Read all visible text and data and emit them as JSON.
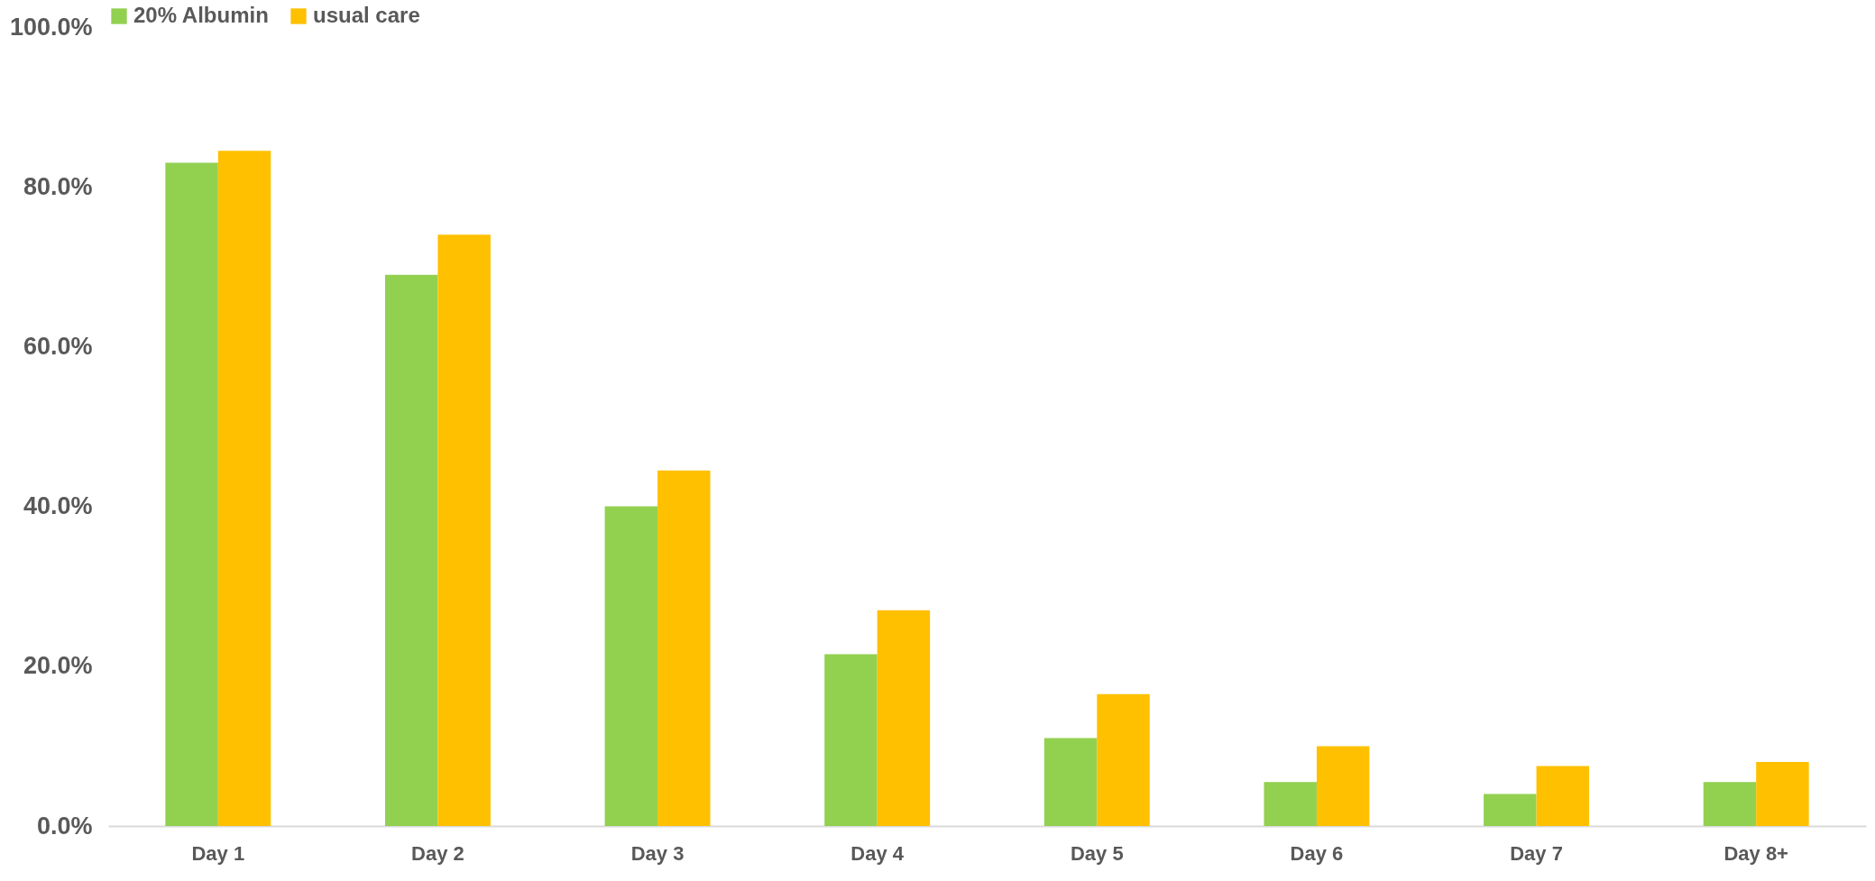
{
  "chart_data": {
    "type": "bar",
    "categories": [
      "Day 1",
      "Day 2",
      "Day 3",
      "Day 4",
      "Day 5",
      "Day 6",
      "Day 7",
      "Day 8+"
    ],
    "series": [
      {
        "name": "20% Albumin",
        "color": "#92d050",
        "values": [
          83,
          69,
          40,
          21.5,
          11,
          5.5,
          4,
          5.5
        ]
      },
      {
        "name": "usual care",
        "color": "#ffc000",
        "values": [
          84.5,
          74,
          44.5,
          27,
          16.5,
          10,
          7.5,
          8
        ]
      }
    ],
    "ylim": [
      0,
      100
    ],
    "yticks": [
      {
        "value": 0,
        "label": "0.0%"
      },
      {
        "value": 20,
        "label": "20.0%"
      },
      {
        "value": 40,
        "label": "40.0%"
      },
      {
        "value": 60,
        "label": "60.0%"
      },
      {
        "value": 80,
        "label": "80.0%"
      },
      {
        "value": 100,
        "label": "100.0%"
      }
    ],
    "grid": false,
    "legend": "top"
  }
}
